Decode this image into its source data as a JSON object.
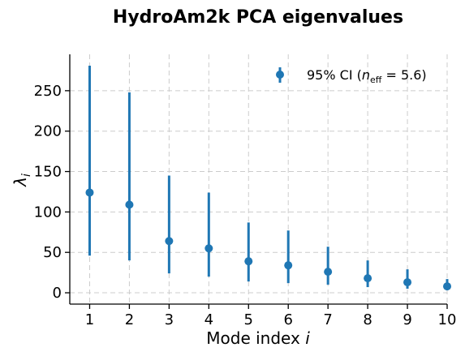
{
  "chart_data": {
    "type": "scatter",
    "title": "HydroAm2k PCA eigenvalues",
    "xlabel": "Mode index i",
    "ylabel": "λ_i",
    "x": [
      1,
      2,
      3,
      4,
      5,
      6,
      7,
      8,
      9,
      10
    ],
    "series": [
      {
        "name": "95% CI (n_eff = 5.6)",
        "color": "#1f77b4",
        "values": [
          124,
          109,
          64,
          55,
          39,
          34,
          26,
          18,
          13,
          8
        ],
        "ci_low": [
          46,
          40,
          24,
          20,
          14,
          12,
          10,
          7,
          5,
          3
        ],
        "ci_high": [
          281,
          248,
          145,
          124,
          87,
          77,
          57,
          40,
          29,
          17
        ]
      }
    ],
    "xticks": [
      "1",
      "2",
      "3",
      "4",
      "5",
      "6",
      "7",
      "8",
      "9",
      "10"
    ],
    "yticks": [
      "0",
      "50",
      "100",
      "150",
      "200",
      "250"
    ],
    "xlim": [
      0.5,
      10
    ],
    "ylim": [
      -14,
      295
    ],
    "grid": true,
    "legend_position": "top-right",
    "legend": {
      "label_prefix": "95% CI (",
      "label_var": "n",
      "label_sub": "eff",
      "label_suffix": " = 5.6)"
    },
    "xlabel_parts": {
      "text": "Mode index ",
      "var": "i"
    },
    "ylabel_parts": {
      "var": "λ",
      "sub": "i"
    }
  }
}
